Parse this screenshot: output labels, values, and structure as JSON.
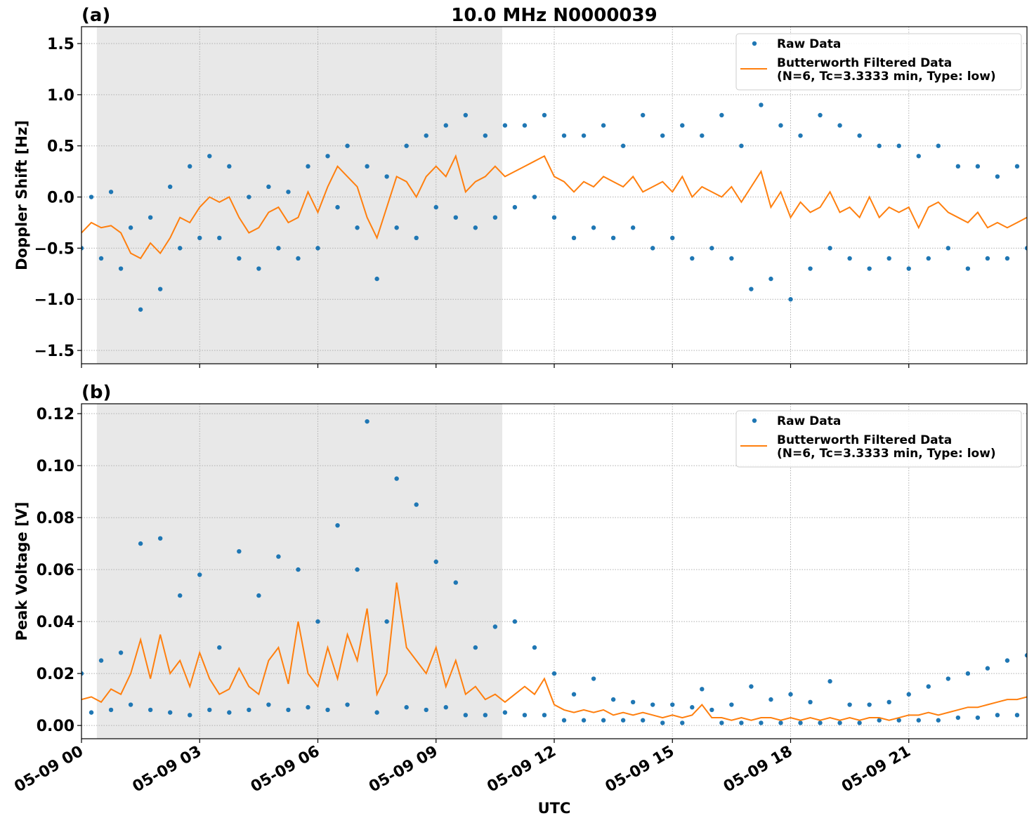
{
  "chart_data": [
    {
      "type": "scatter-line",
      "title": "10.0 MHz N0000039",
      "panel_label": "(a)",
      "ylabel": "Doppler Shift [Hz]",
      "xlim": [
        0,
        24
      ],
      "xticks": [
        0,
        3,
        6,
        9,
        12,
        15,
        18,
        21
      ],
      "ylim": [
        -1.63,
        1.665
      ],
      "yticks": [
        {
          "value": -1.5,
          "label": "−1.5"
        },
        {
          "value": -1.0,
          "label": "−1.0"
        },
        {
          "value": -0.5,
          "label": "−0.5"
        },
        {
          "value": 0,
          "label": "0.0"
        },
        {
          "value": 0.5,
          "label": "0.5"
        },
        {
          "value": 1.0,
          "label": "1.0"
        },
        {
          "value": 1.5,
          "label": "1.5"
        }
      ],
      "grid": true,
      "legend": "upper right",
      "shade": [
        0.39,
        10.68
      ],
      "shade_color": "#e8e8e8",
      "x": [
        0,
        0.25,
        0.5,
        0.75,
        1,
        1.25,
        1.5,
        1.75,
        2,
        2.25,
        2.5,
        2.75,
        3,
        3.25,
        3.5,
        3.75,
        4,
        4.25,
        4.5,
        4.75,
        5,
        5.25,
        5.5,
        5.75,
        6,
        6.25,
        6.5,
        6.75,
        7,
        7.25,
        7.5,
        7.75,
        8,
        8.25,
        8.5,
        8.75,
        9,
        9.25,
        9.5,
        9.75,
        10,
        10.25,
        10.5,
        10.75,
        11,
        11.25,
        11.5,
        11.75,
        12,
        12.25,
        12.5,
        12.75,
        13,
        13.25,
        13.5,
        13.75,
        14,
        14.25,
        14.5,
        14.75,
        15,
        15.25,
        15.5,
        15.75,
        16,
        16.25,
        16.5,
        16.75,
        17,
        17.25,
        17.5,
        17.75,
        18,
        18.25,
        18.5,
        18.75,
        19,
        19.25,
        19.5,
        19.75,
        20,
        20.25,
        20.5,
        20.75,
        21,
        21.25,
        21.5,
        21.75,
        22,
        22.25,
        22.5,
        22.75,
        23,
        23.25,
        23.5,
        23.75,
        24
      ],
      "series": [
        {
          "name": "Raw Data",
          "color": "#1f77b4",
          "style": "markers",
          "values": [
            -0.5,
            0.0,
            -0.6,
            0.05,
            -0.7,
            -0.3,
            -1.1,
            -0.2,
            -0.9,
            0.1,
            -0.5,
            0.3,
            -0.4,
            0.4,
            -0.4,
            0.3,
            -0.6,
            0.0,
            -0.7,
            0.1,
            -0.5,
            0.05,
            -0.6,
            0.3,
            -0.5,
            0.4,
            -0.1,
            0.5,
            -0.3,
            0.3,
            -0.8,
            0.2,
            -0.3,
            0.5,
            -0.4,
            0.6,
            -0.1,
            0.7,
            -0.2,
            0.8,
            -0.3,
            0.6,
            -0.2,
            0.7,
            -0.1,
            0.7,
            0.0,
            0.8,
            -0.2,
            0.6,
            -0.4,
            0.6,
            -0.3,
            0.7,
            -0.4,
            0.5,
            -0.3,
            0.8,
            -0.5,
            0.6,
            -0.4,
            0.7,
            -0.6,
            0.6,
            -0.5,
            0.8,
            -0.6,
            0.5,
            -0.9,
            0.9,
            -0.8,
            0.7,
            -1.0,
            0.6,
            -0.7,
            0.8,
            -0.5,
            0.7,
            -0.6,
            0.6,
            -0.7,
            0.5,
            -0.6,
            0.5,
            -0.7,
            0.4,
            -0.6,
            0.5,
            -0.5,
            0.3,
            -0.7,
            0.3,
            -0.6,
            0.2,
            -0.6,
            0.3,
            -0.5
          ]
        },
        {
          "name": "Butterworth Filtered Data\n(N=6, Tc=3.3333 min, Type: low)",
          "color": "#ff7f0e",
          "style": "line",
          "values": [
            -0.35,
            -0.25,
            -0.3,
            -0.28,
            -0.35,
            -0.55,
            -0.6,
            -0.45,
            -0.55,
            -0.4,
            -0.2,
            -0.25,
            -0.1,
            0.0,
            -0.05,
            0.0,
            -0.2,
            -0.35,
            -0.3,
            -0.15,
            -0.1,
            -0.25,
            -0.2,
            0.05,
            -0.15,
            0.1,
            0.3,
            0.2,
            0.1,
            -0.2,
            -0.4,
            -0.1,
            0.2,
            0.15,
            0.0,
            0.2,
            0.3,
            0.2,
            0.4,
            0.05,
            0.15,
            0.2,
            0.3,
            0.2,
            0.25,
            0.3,
            0.35,
            0.4,
            0.2,
            0.15,
            0.05,
            0.15,
            0.1,
            0.2,
            0.15,
            0.1,
            0.2,
            0.05,
            0.1,
            0.15,
            0.05,
            0.2,
            0.0,
            0.1,
            0.05,
            0.0,
            0.1,
            -0.05,
            0.1,
            0.25,
            -0.1,
            0.05,
            -0.2,
            -0.05,
            -0.15,
            -0.1,
            0.05,
            -0.15,
            -0.1,
            -0.2,
            0.0,
            -0.2,
            -0.1,
            -0.15,
            -0.1,
            -0.3,
            -0.1,
            -0.05,
            -0.15,
            -0.2,
            -0.25,
            -0.15,
            -0.3,
            -0.25,
            -0.3,
            -0.25,
            -0.2
          ]
        }
      ]
    },
    {
      "type": "scatter-line",
      "panel_label": "(b)",
      "ylabel": "Peak Voltage [V]",
      "xlabel": "UTC",
      "xlim": [
        0,
        24
      ],
      "xticks": [
        {
          "value": 0,
          "label": "05-09 00"
        },
        {
          "value": 3,
          "label": "05-09 03"
        },
        {
          "value": 6,
          "label": "05-09 06"
        },
        {
          "value": 9,
          "label": "05-09 09"
        },
        {
          "value": 12,
          "label": "05-09 12"
        },
        {
          "value": 15,
          "label": "05-09 15"
        },
        {
          "value": 18,
          "label": "05-09 18"
        },
        {
          "value": 21,
          "label": "05-09 21"
        }
      ],
      "ylim": [
        -0.0051,
        0.1238
      ],
      "yticks": [
        {
          "value": 0,
          "label": "0.00"
        },
        {
          "value": 0.02,
          "label": "0.02"
        },
        {
          "value": 0.04,
          "label": "0.04"
        },
        {
          "value": 0.06,
          "label": "0.06"
        },
        {
          "value": 0.08,
          "label": "0.08"
        },
        {
          "value": 0.1,
          "label": "0.10"
        },
        {
          "value": 0.12,
          "label": "0.12"
        }
      ],
      "grid": true,
      "legend": "upper right",
      "shade": [
        0.39,
        10.68
      ],
      "shade_color": "#e8e8e8",
      "x": [
        0,
        0.25,
        0.5,
        0.75,
        1,
        1.25,
        1.5,
        1.75,
        2,
        2.25,
        2.5,
        2.75,
        3,
        3.25,
        3.5,
        3.75,
        4,
        4.25,
        4.5,
        4.75,
        5,
        5.25,
        5.5,
        5.75,
        6,
        6.25,
        6.5,
        6.75,
        7,
        7.25,
        7.5,
        7.75,
        8,
        8.25,
        8.5,
        8.75,
        9,
        9.25,
        9.5,
        9.75,
        10,
        10.25,
        10.5,
        10.75,
        11,
        11.25,
        11.5,
        11.75,
        12,
        12.25,
        12.5,
        12.75,
        13,
        13.25,
        13.5,
        13.75,
        14,
        14.25,
        14.5,
        14.75,
        15,
        15.25,
        15.5,
        15.75,
        16,
        16.25,
        16.5,
        16.75,
        17,
        17.25,
        17.5,
        17.75,
        18,
        18.25,
        18.5,
        18.75,
        19,
        19.25,
        19.5,
        19.75,
        20,
        20.25,
        20.5,
        20.75,
        21,
        21.25,
        21.5,
        21.75,
        22,
        22.25,
        22.5,
        22.75,
        23,
        23.25,
        23.5,
        23.75,
        24
      ],
      "series": [
        {
          "name": "Raw Data",
          "color": "#1f77b4",
          "style": "markers",
          "values": [
            0.02,
            0.005,
            0.025,
            0.006,
            0.028,
            0.008,
            0.07,
            0.006,
            0.072,
            0.005,
            0.05,
            0.004,
            0.058,
            0.006,
            0.03,
            0.005,
            0.067,
            0.006,
            0.05,
            0.008,
            0.065,
            0.006,
            0.06,
            0.007,
            0.04,
            0.006,
            0.077,
            0.008,
            0.06,
            0.117,
            0.005,
            0.04,
            0.095,
            0.007,
            0.085,
            0.006,
            0.063,
            0.007,
            0.055,
            0.004,
            0.03,
            0.004,
            0.038,
            0.005,
            0.04,
            0.004,
            0.03,
            0.004,
            0.02,
            0.002,
            0.012,
            0.002,
            0.018,
            0.002,
            0.01,
            0.002,
            0.009,
            0.002,
            0.008,
            0.001,
            0.008,
            0.001,
            0.007,
            0.014,
            0.006,
            0.001,
            0.008,
            0.001,
            0.015,
            0.001,
            0.01,
            0.001,
            0.012,
            0.001,
            0.009,
            0.001,
            0.017,
            0.001,
            0.008,
            0.001,
            0.008,
            0.002,
            0.009,
            0.002,
            0.012,
            0.002,
            0.015,
            0.002,
            0.018,
            0.003,
            0.02,
            0.003,
            0.022,
            0.004,
            0.025,
            0.004,
            0.027
          ]
        },
        {
          "name": "Butterworth Filtered Data\n(N=6, Tc=3.3333 min, Type: low)",
          "color": "#ff7f0e",
          "style": "line",
          "values": [
            0.01,
            0.011,
            0.009,
            0.014,
            0.012,
            0.02,
            0.033,
            0.018,
            0.035,
            0.02,
            0.025,
            0.015,
            0.028,
            0.018,
            0.012,
            0.014,
            0.022,
            0.015,
            0.012,
            0.025,
            0.03,
            0.016,
            0.04,
            0.02,
            0.015,
            0.03,
            0.018,
            0.035,
            0.025,
            0.045,
            0.012,
            0.02,
            0.055,
            0.03,
            0.025,
            0.02,
            0.03,
            0.015,
            0.025,
            0.012,
            0.015,
            0.01,
            0.012,
            0.009,
            0.012,
            0.015,
            0.012,
            0.018,
            0.008,
            0.006,
            0.005,
            0.006,
            0.005,
            0.006,
            0.004,
            0.005,
            0.004,
            0.005,
            0.004,
            0.003,
            0.004,
            0.003,
            0.004,
            0.008,
            0.003,
            0.003,
            0.002,
            0.003,
            0.002,
            0.003,
            0.003,
            0.002,
            0.003,
            0.002,
            0.003,
            0.002,
            0.003,
            0.002,
            0.003,
            0.002,
            0.003,
            0.003,
            0.002,
            0.003,
            0.004,
            0.004,
            0.005,
            0.004,
            0.005,
            0.006,
            0.007,
            0.007,
            0.008,
            0.009,
            0.01,
            0.01,
            0.011
          ]
        }
      ]
    }
  ]
}
